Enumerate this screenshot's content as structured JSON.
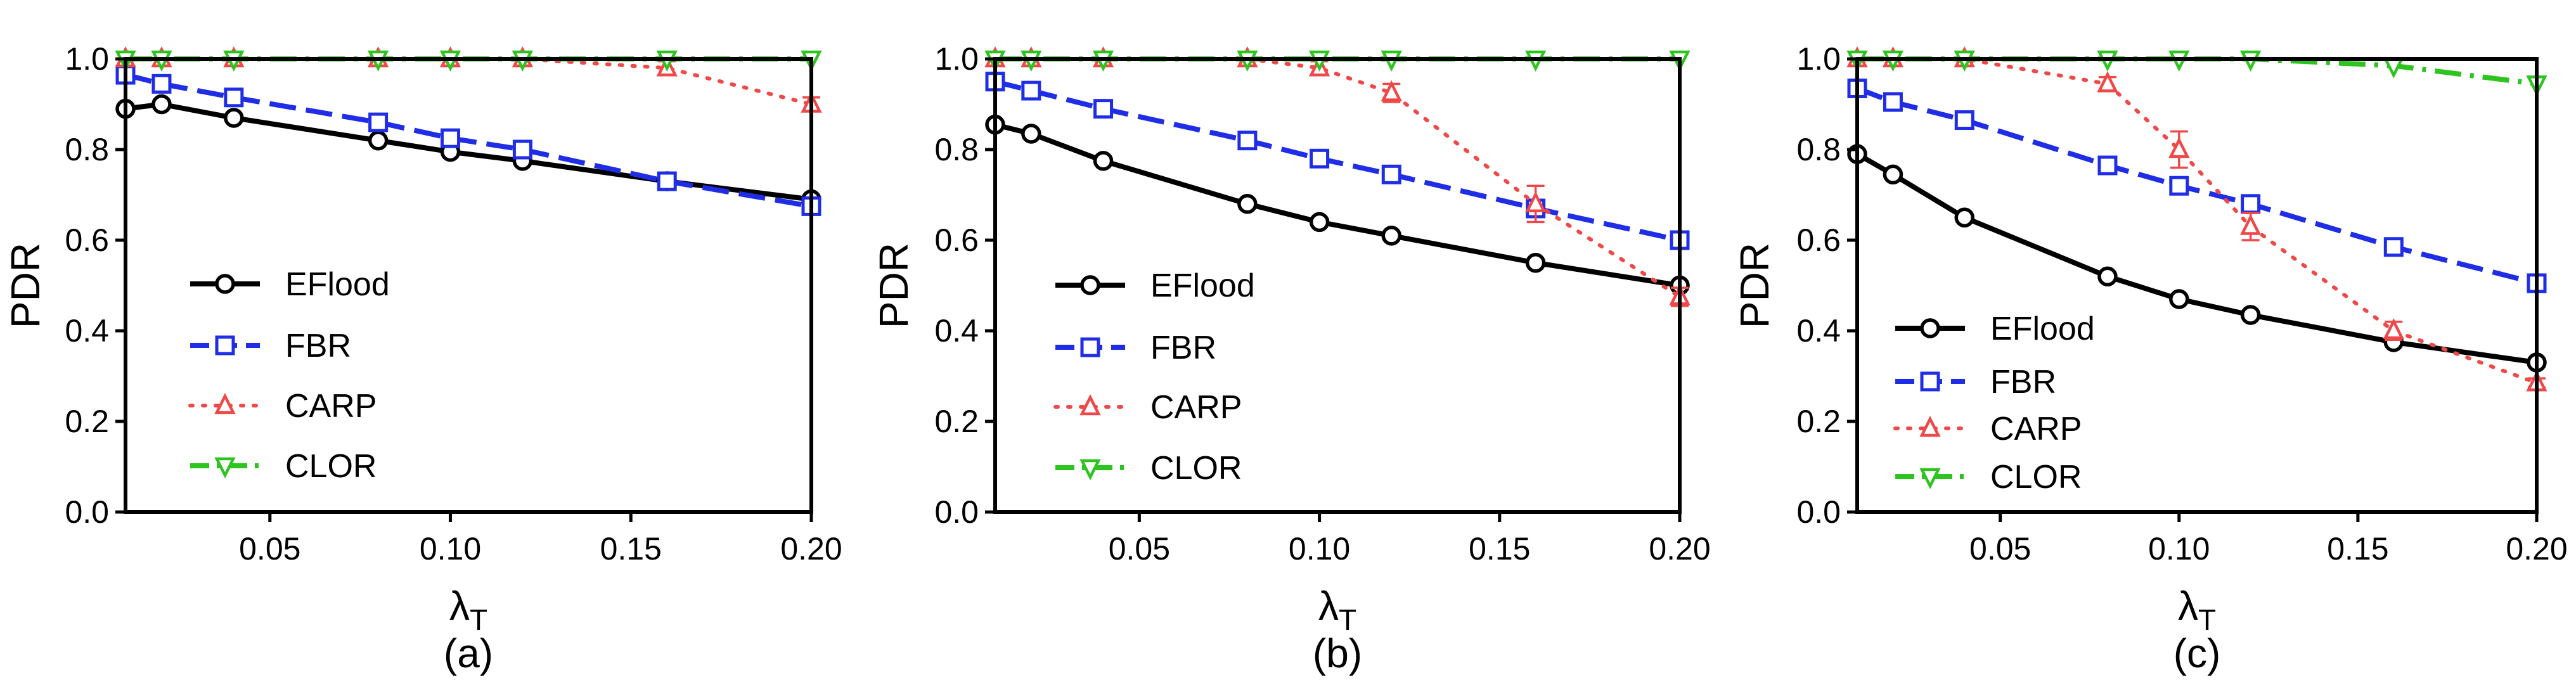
{
  "chart_data": [
    {
      "type": "line",
      "panel_label": "(a)",
      "title": "",
      "xlabel": "λ",
      "xlabel_sub": "T",
      "ylabel": "PDR",
      "xlim": [
        0.01,
        0.2
      ],
      "ylim": [
        0.0,
        1.0
      ],
      "xticks": [
        0.05,
        0.1,
        0.15,
        0.2
      ],
      "xtick_labels": [
        "0.05",
        "0.10",
        "0.15",
        "0.20"
      ],
      "yticks": [
        0.0,
        0.2,
        0.4,
        0.6,
        0.8,
        1.0
      ],
      "ytick_labels": [
        "0.0",
        "0.2",
        "0.4",
        "0.6",
        "0.8",
        "1.0"
      ],
      "grid": false,
      "legend_position": "lower-left",
      "x": [
        0.01,
        0.02,
        0.04,
        0.08,
        0.1,
        0.12,
        0.16,
        0.2
      ],
      "series": [
        {
          "name": "EFlood",
          "values": [
            0.89,
            0.9,
            0.87,
            0.82,
            0.795,
            0.775,
            0.73,
            0.69
          ],
          "errors": [
            0,
            0,
            0,
            0,
            0,
            0,
            0,
            0
          ]
        },
        {
          "name": "FBR",
          "values": [
            0.965,
            0.945,
            0.915,
            0.86,
            0.825,
            0.8,
            0.73,
            0.675
          ],
          "errors": [
            0,
            0,
            0,
            0,
            0,
            0,
            0,
            0
          ]
        },
        {
          "name": "CARP",
          "values": [
            1.0,
            1.0,
            1.0,
            1.0,
            1.0,
            1.0,
            0.98,
            0.9
          ],
          "errors": [
            0,
            0,
            0,
            0,
            0,
            0,
            0.015,
            0.015
          ]
        },
        {
          "name": "CLOR",
          "values": [
            1.0,
            1.0,
            1.0,
            1.0,
            1.0,
            1.0,
            1.0,
            1.0
          ],
          "errors": [
            0,
            0,
            0,
            0,
            0,
            0,
            0,
            0
          ]
        }
      ]
    },
    {
      "type": "line",
      "panel_label": "(b)",
      "title": "",
      "xlabel": "λ",
      "xlabel_sub": "T",
      "ylabel": "PDR",
      "xlim": [
        0.01,
        0.2
      ],
      "ylim": [
        0.0,
        1.0
      ],
      "xticks": [
        0.05,
        0.1,
        0.15,
        0.2
      ],
      "xtick_labels": [
        "0.05",
        "0.10",
        "0.15",
        "0.20"
      ],
      "yticks": [
        0.0,
        0.2,
        0.4,
        0.6,
        0.8,
        1.0
      ],
      "ytick_labels": [
        "0.0",
        "0.2",
        "0.4",
        "0.6",
        "0.8",
        "1.0"
      ],
      "grid": false,
      "legend_position": "lower-left",
      "x": [
        0.01,
        0.02,
        0.04,
        0.08,
        0.1,
        0.12,
        0.16,
        0.2
      ],
      "series": [
        {
          "name": "EFlood",
          "values": [
            0.855,
            0.835,
            0.775,
            0.68,
            0.64,
            0.61,
            0.55,
            0.5
          ],
          "errors": [
            0,
            0,
            0,
            0,
            0,
            0,
            0,
            0
          ]
        },
        {
          "name": "FBR",
          "values": [
            0.95,
            0.93,
            0.89,
            0.82,
            0.78,
            0.745,
            0.67,
            0.6
          ],
          "errors": [
            0,
            0,
            0,
            0,
            0,
            0,
            0,
            0
          ]
        },
        {
          "name": "CARP",
          "values": [
            1.0,
            1.0,
            1.0,
            1.0,
            0.98,
            0.925,
            0.68,
            0.475
          ],
          "errors": [
            0,
            0,
            0,
            0,
            0.015,
            0.02,
            0.04,
            0.02
          ]
        },
        {
          "name": "CLOR",
          "values": [
            1.0,
            1.0,
            1.0,
            1.0,
            1.0,
            1.0,
            1.0,
            1.0
          ],
          "errors": [
            0,
            0,
            0,
            0,
            0,
            0,
            0,
            0
          ]
        }
      ]
    },
    {
      "type": "line",
      "panel_label": "(c)",
      "title": "",
      "xlabel": "λ",
      "xlabel_sub": "T",
      "ylabel": "PDR",
      "xlim": [
        0.01,
        0.2
      ],
      "ylim": [
        0.0,
        1.0
      ],
      "xticks": [
        0.05,
        0.1,
        0.15,
        0.2
      ],
      "xtick_labels": [
        "0.05",
        "0.10",
        "0.15",
        "0.20"
      ],
      "yticks": [
        0.0,
        0.2,
        0.4,
        0.6,
        0.8,
        1.0
      ],
      "ytick_labels": [
        "0.0",
        "0.2",
        "0.4",
        "0.6",
        "0.8",
        "1.0"
      ],
      "grid": false,
      "legend_position": "lower-left",
      "x": [
        0.01,
        0.02,
        0.04,
        0.08,
        0.1,
        0.12,
        0.16,
        0.2
      ],
      "series": [
        {
          "name": "EFlood",
          "values": [
            0.79,
            0.745,
            0.65,
            0.52,
            0.47,
            0.435,
            0.375,
            0.33
          ],
          "errors": [
            0,
            0,
            0,
            0,
            0,
            0,
            0,
            0
          ]
        },
        {
          "name": "FBR",
          "values": [
            0.935,
            0.905,
            0.865,
            0.765,
            0.72,
            0.68,
            0.585,
            0.505
          ],
          "errors": [
            0,
            0,
            0,
            0,
            0,
            0,
            0,
            0
          ]
        },
        {
          "name": "CARP",
          "values": [
            1.0,
            1.0,
            1.0,
            0.945,
            0.8,
            0.63,
            0.4,
            0.285
          ],
          "errors": [
            0,
            0,
            0,
            0.015,
            0.04,
            0.03,
            0.02,
            0.01
          ]
        },
        {
          "name": "CLOR",
          "values": [
            1.0,
            1.0,
            1.0,
            1.0,
            1.0,
            1.0,
            0.985,
            0.945
          ],
          "errors": [
            0,
            0,
            0,
            0,
            0,
            0,
            0,
            0
          ]
        }
      ]
    }
  ],
  "series_styles": [
    {
      "name": "EFlood",
      "color": "#000000",
      "dash": "solid",
      "marker": "circle"
    },
    {
      "name": "FBR",
      "color": "#1f2ee6",
      "dash": "dashed",
      "marker": "square"
    },
    {
      "name": "CARP",
      "color": "#f04848",
      "dash": "dotted",
      "marker": "triangle-up"
    },
    {
      "name": "CLOR",
      "color": "#2ec41f",
      "dash": "dash-dot",
      "marker": "triangle-down"
    }
  ]
}
